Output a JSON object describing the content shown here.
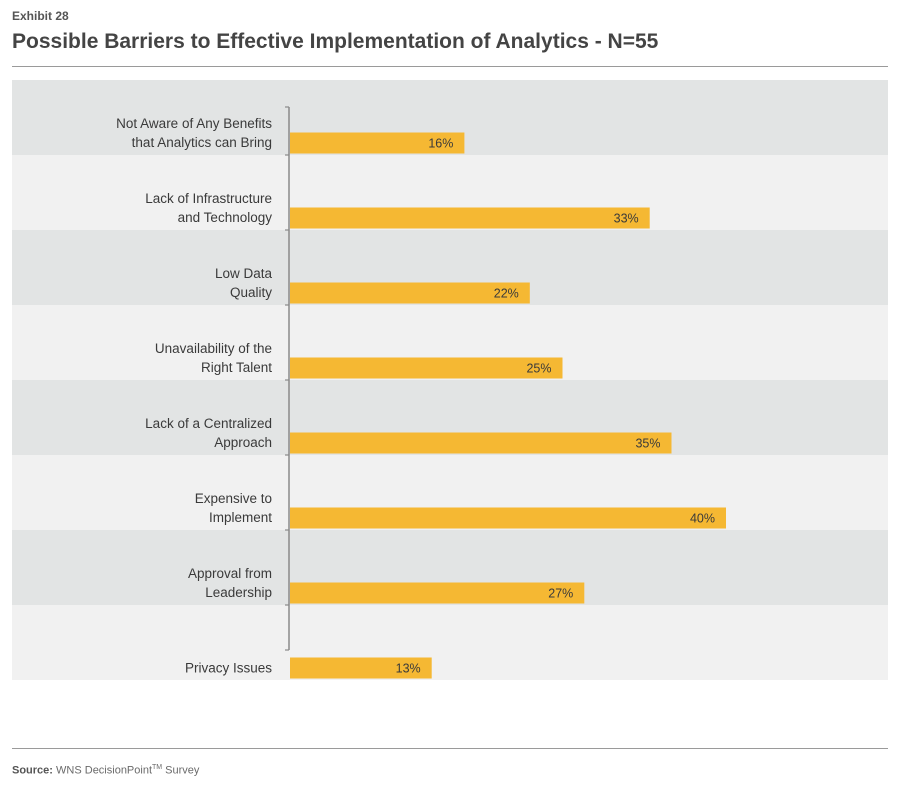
{
  "header": {
    "exhibit": "Exhibit 28"
  },
  "source": {
    "label": "Source:",
    "text": "WNS DecisionPoint",
    "tm": "TM",
    "suffix": " Survey"
  },
  "colors": {
    "bar": "#f5b833",
    "band_dark": "#e2e4e4",
    "band_light": "#f1f1f1",
    "axis": "#8a8a8a"
  },
  "chart_data": {
    "type": "bar",
    "orientation": "horizontal",
    "title": "Possible Barriers to Effective Implementation of Analytics - N=55",
    "categories": [
      [
        "Not Aware of Any Benefits",
        "that Analytics can Bring"
      ],
      [
        "Lack of Infrastructure",
        "and Technology"
      ],
      [
        "Low Data",
        "Quality"
      ],
      [
        "Unavailability of the",
        "Right Talent"
      ],
      [
        "Lack of a Centralized",
        "Approach"
      ],
      [
        "Expensive to",
        "Implement"
      ],
      [
        "Approval from",
        "Leadership"
      ],
      [
        "Privacy Issues"
      ]
    ],
    "values": [
      16,
      33,
      22,
      25,
      35,
      40,
      27,
      13
    ],
    "data_labels": [
      "16%",
      "33%",
      "22%",
      "25%",
      "35%",
      "40%",
      "27%",
      "13%"
    ],
    "value_unit": "%",
    "xlim": [
      0,
      40
    ],
    "grid": false,
    "legend": "none"
  }
}
